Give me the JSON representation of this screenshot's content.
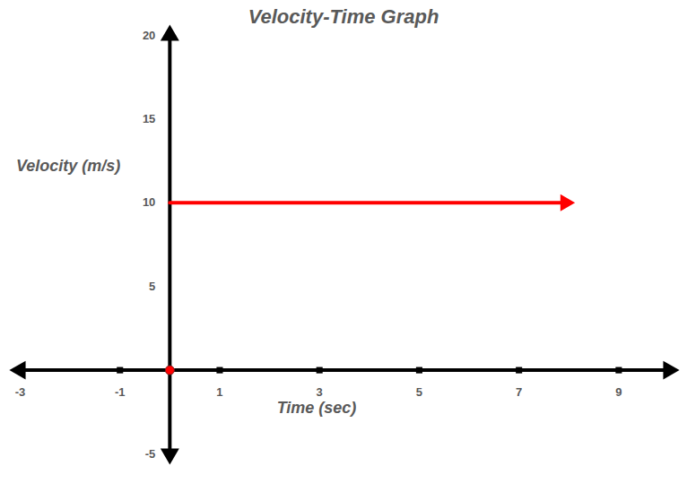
{
  "chart_data": {
    "type": "line",
    "title": "Velocity-Time Graph",
    "x_label": "Time (sec)",
    "y_label": "Velocity (m/s)",
    "xlim": [
      -3,
      10
    ],
    "xticks": [
      -3,
      -1,
      1,
      3,
      5,
      7,
      9
    ],
    "ylim": [
      -5,
      20
    ],
    "yticks": [
      -5,
      5,
      10,
      15,
      20
    ],
    "grid": false,
    "series": [
      {
        "type": "line",
        "color": "red",
        "marker": "arrow",
        "line_style": "solid",
        "x": [
          0,
          8
        ],
        "values": [
          10,
          10
        ]
      },
      {
        "type": "scatter",
        "color": "red",
        "marker": "circle",
        "x": [
          0
        ],
        "values": [
          0
        ]
      }
    ]
  }
}
